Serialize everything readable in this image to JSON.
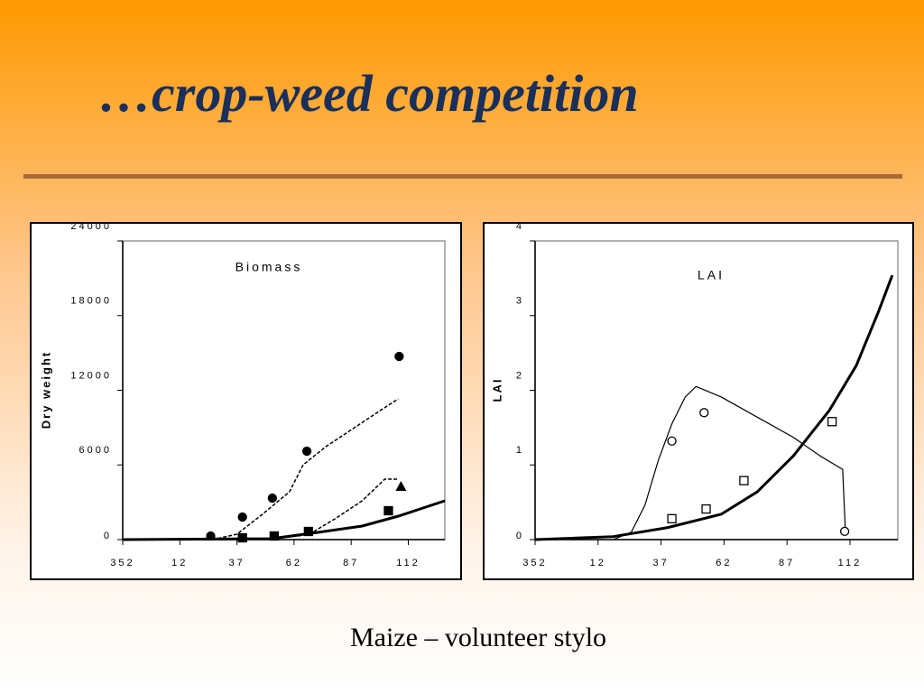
{
  "slide": {
    "title": "…crop-weed competition",
    "caption": "Maize – volunteer stylo"
  },
  "chart_data": [
    {
      "type": "line",
      "title": "Biomass",
      "ylabel": "Dry weight",
      "xlim": [
        352,
        493
      ],
      "xticks": [
        352,
        {
          "value": 377,
          "label": "12"
        },
        {
          "value": 402,
          "label": "37"
        },
        {
          "value": 427,
          "label": "62"
        },
        {
          "value": 452,
          "label": "87"
        },
        {
          "value": 477,
          "label": "112"
        }
      ],
      "ylim": [
        0,
        24000
      ],
      "yticks": [
        0,
        6000,
        12000,
        18000,
        24000
      ],
      "series": [
        {
          "mode": "dashed",
          "x": [
            391.3,
            402,
            413.1,
            425,
            431,
            440.9,
            452.8,
            464.7,
            472.6
          ],
          "values": [
            0,
            435,
            2030,
            3840,
            6017,
            7467,
            8917,
            10367,
            11310
          ]
        },
        {
          "mode": "dashed",
          "x": [
            417,
            429,
            435,
            444.9,
            456.8,
            466.7,
            472.6
          ],
          "values": [
            72,
            290,
            580,
            1668,
            3118,
            4858,
            4858
          ]
        },
        {
          "mode": "thick",
          "x": [
            352,
            417,
            437.4,
            456.8,
            472.6,
            493
          ],
          "values": [
            0,
            72,
            580,
            1088,
            1885,
            3118
          ]
        },
        {
          "mode": "circle",
          "x": [
            390.5,
            404.4,
            417.5,
            432.6,
            473
          ],
          "values": [
            290,
            1813,
            3335,
            7106,
            14719
          ]
        },
        {
          "mode": "square",
          "x": [
            404.4,
            418.3,
            433.3,
            468.3
          ],
          "values": [
            145,
            290,
            653,
            2320
          ]
        },
        {
          "mode": "triangle",
          "x": [
            473.8
          ],
          "values": [
            4278
          ]
        }
      ]
    },
    {
      "type": "line",
      "title": "LAI",
      "ylabel": "LAI",
      "xlim": [
        352,
        496
      ],
      "xticks": [
        352,
        {
          "value": 377,
          "label": "12"
        },
        {
          "value": 402,
          "label": "37"
        },
        {
          "value": 427,
          "label": "62"
        },
        {
          "value": 452,
          "label": "87"
        },
        {
          "value": 477,
          "label": "112"
        }
      ],
      "ylim": [
        0,
        4
      ],
      "yticks": [
        0,
        1,
        2,
        3,
        4
      ],
      "series": [
        {
          "mode": "thin",
          "x": [
            383,
            390.2,
            395.6,
            400.9,
            406.3,
            411.6,
            415.9,
            425.9,
            440.2,
            454.5,
            465.2,
            474.1,
            475.2
          ],
          "values": [
            0,
            0.1,
            0.46,
            1.06,
            1.55,
            1.91,
            2.05,
            1.91,
            1.64,
            1.37,
            1.12,
            0.94,
            0.1
          ]
        },
        {
          "mode": "thick",
          "x": [
            352,
            383,
            404.5,
            425.9,
            440.2,
            454.5,
            468.8,
            479.5,
            488.4,
            493.8
          ],
          "values": [
            0,
            0.04,
            0.16,
            0.34,
            0.64,
            1.12,
            1.73,
            2.33,
            3.06,
            3.54
          ]
        },
        {
          "mode": "circle-open",
          "x": [
            406.3,
            419.1,
            474.9
          ],
          "values": [
            1.32,
            1.7,
            0.11
          ]
        },
        {
          "mode": "square-open",
          "x": [
            406.3,
            419.9,
            434.9,
            469.9
          ],
          "values": [
            0.28,
            0.41,
            0.79,
            1.58
          ]
        }
      ]
    }
  ]
}
